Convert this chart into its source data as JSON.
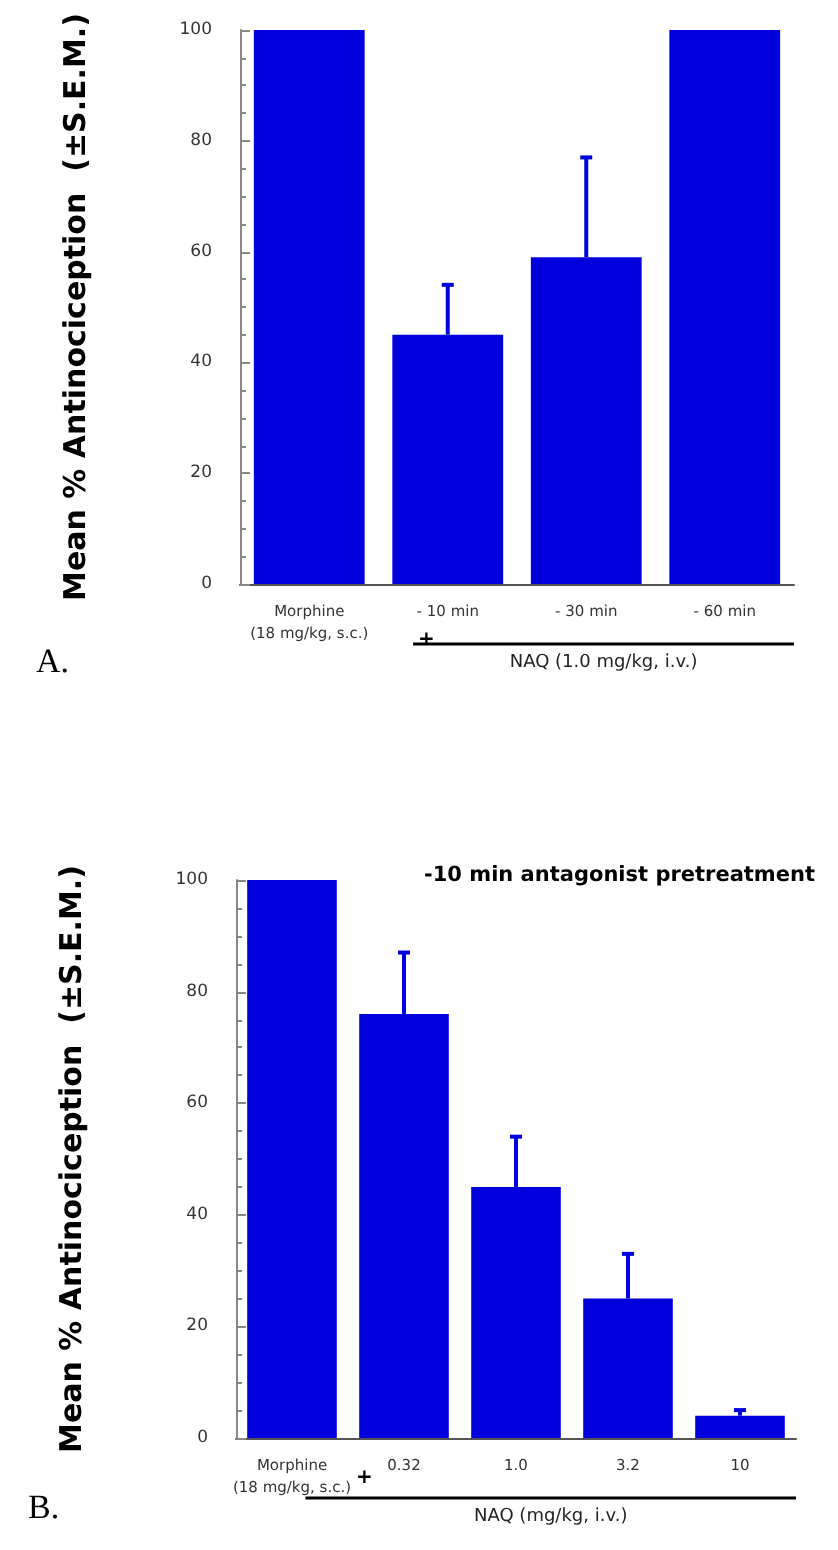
{
  "chart_data": [
    {
      "type": "bar",
      "categories": [
        "Morphine\n(18 mg/kg, s.c.)",
        "- 10 min",
        "- 30 min",
        "- 60 min"
      ],
      "values": [
        100,
        45,
        59,
        100
      ],
      "errors": [
        null,
        [
          45,
          54
        ],
        [
          59,
          77
        ],
        null
      ],
      "color": "#0000dd",
      "ylabel": "Mean % Antinociception  (±S.E.M.)",
      "xlabel": "NAQ (1.0 mg/kg, i.v.)",
      "ylim": [
        0,
        100
      ],
      "yticks": [
        0,
        20,
        40,
        60,
        80,
        100
      ],
      "grid": false,
      "annotations": [
        "+",
        "A."
      ]
    },
    {
      "type": "bar",
      "categories": [
        "Morphine\n(18 mg/kg, s.c.)",
        "0.32",
        "1.0",
        "3.2",
        "10"
      ],
      "values": [
        100,
        76,
        45,
        25,
        4
      ],
      "errors": [
        null,
        [
          76,
          87
        ],
        [
          45,
          54
        ],
        [
          25,
          33
        ],
        [
          4,
          5
        ]
      ],
      "color": "#0000dd",
      "ylabel": "Mean % Antinociception  (±S.E.M.)",
      "xlabel": "NAQ (mg/kg, i.v.)",
      "ylim": [
        0,
        100
      ],
      "yticks": [
        0,
        20,
        40,
        60,
        80,
        100
      ],
      "grid": false,
      "annotations": [
        "+",
        "-10 min antagonist pretreatment",
        "B."
      ]
    }
  ]
}
